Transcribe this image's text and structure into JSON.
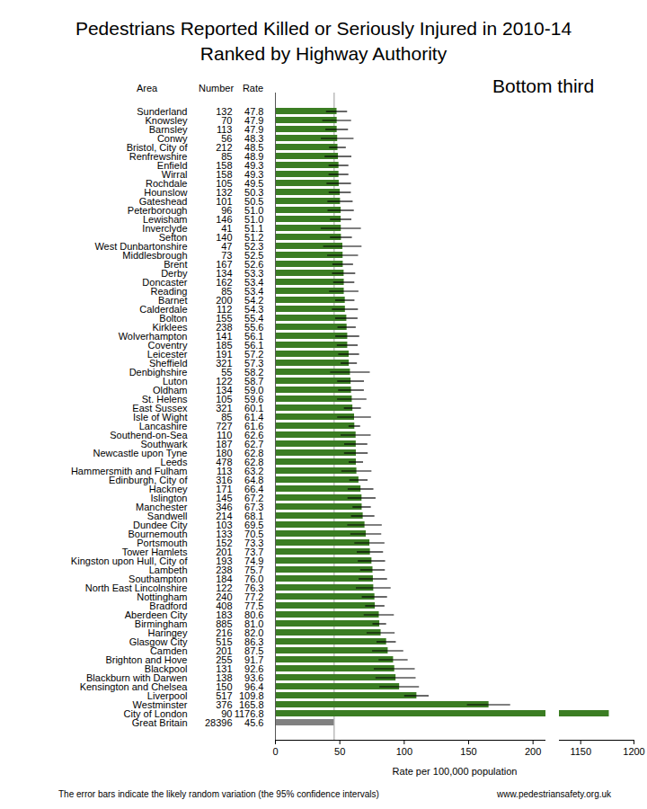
{
  "chart_data": {
    "type": "bar",
    "orientation": "horizontal",
    "title": "Pedestrians Reported Killed or Seriously Injured in 2010-14",
    "subtitle": "Ranked by Highway Authority",
    "annotation": "Bottom third",
    "caption": "The error bars indicate the likely random variation (the 95% confidence intervals)",
    "source": "www.pedestriansafety.org.uk",
    "columns": [
      "Area",
      "Number",
      "Rate"
    ],
    "x_label": "Rate per 100,000 population",
    "xlim": [
      0,
      1200
    ],
    "x_break": [
      210,
      1130
    ],
    "xticks": [
      0,
      50,
      100,
      150,
      200,
      1150,
      1200
    ],
    "grid": false,
    "reference_line": 45.6,
    "categories": [
      "Sunderland",
      "Knowsley",
      "Barnsley",
      "Conwy",
      "Bristol, City of",
      "Renfrewshire",
      "Enfield",
      "Wirral",
      "Rochdale",
      "Hounslow",
      "Gateshead",
      "Peterborough",
      "Lewisham",
      "Inverclyde",
      "Sefton",
      "West Dunbartonshire",
      "Middlesbrough",
      "Brent",
      "Derby",
      "Doncaster",
      "Reading",
      "Barnet",
      "Calderdale",
      "Bolton",
      "Kirklees",
      "Wolverhampton",
      "Coventry",
      "Leicester",
      "Sheffield",
      "Denbighshire",
      "Luton",
      "Oldham",
      "St. Helens",
      "East Sussex",
      "Isle of Wight",
      "Lancashire",
      "Southend-on-Sea",
      "Southwark",
      "Newcastle upon Tyne",
      "Leeds",
      "Hammersmith and Fulham",
      "Edinburgh, City of",
      "Hackney",
      "Islington",
      "Manchester",
      "Sandwell",
      "Dundee City",
      "Bournemouth",
      "Portsmouth",
      "Tower Hamlets",
      "Kingston upon Hull, City of",
      "Lambeth",
      "Southampton",
      "North East Lincolnshire",
      "Nottingham",
      "Bradford",
      "Aberdeen City",
      "Birmingham",
      "Haringey",
      "Glasgow City",
      "Camden",
      "Brighton and Hove",
      "Blackpool",
      "Blackburn with Darwen",
      "Kensington and Chelsea",
      "Liverpool",
      "Westminster",
      "City of London",
      "Great Britain"
    ],
    "counts": [
      132,
      70,
      113,
      56,
      212,
      85,
      158,
      158,
      105,
      132,
      101,
      96,
      146,
      41,
      140,
      47,
      73,
      167,
      134,
      162,
      85,
      200,
      112,
      155,
      238,
      141,
      185,
      191,
      321,
      55,
      122,
      134,
      105,
      321,
      85,
      727,
      110,
      187,
      180,
      478,
      113,
      316,
      171,
      145,
      346,
      214,
      103,
      133,
      152,
      201,
      193,
      238,
      184,
      122,
      240,
      408,
      183,
      885,
      216,
      515,
      201,
      255,
      131,
      138,
      150,
      517,
      376,
      90,
      28396
    ],
    "values": [
      47.8,
      47.9,
      47.9,
      48.3,
      48.5,
      48.9,
      49.3,
      49.3,
      49.5,
      50.3,
      50.5,
      51.0,
      51.0,
      51.1,
      51.2,
      52.3,
      52.5,
      52.6,
      53.3,
      53.4,
      53.4,
      54.2,
      54.3,
      55.4,
      55.6,
      56.1,
      56.1,
      57.2,
      57.3,
      58.2,
      58.7,
      59.0,
      59.6,
      60.1,
      61.4,
      61.6,
      62.6,
      62.7,
      62.8,
      62.8,
      63.2,
      64.8,
      66.4,
      67.2,
      67.3,
      68.1,
      69.5,
      70.5,
      73.3,
      73.7,
      74.9,
      75.7,
      76.0,
      76.3,
      77.2,
      77.5,
      80.6,
      81.0,
      82.0,
      86.3,
      87.5,
      91.7,
      92.6,
      93.6,
      96.4,
      109.8,
      165.8,
      1176.8,
      45.6
    ],
    "value_labels": [
      "47.8",
      "47.9",
      "47.9",
      "48.3",
      "48.5",
      "48.9",
      "49.3",
      "49.3",
      "49.5",
      "50.3",
      "50.5",
      "51.0",
      "51.0",
      "51.1",
      "51.2",
      "52.3",
      "52.5",
      "52.6",
      "53.3",
      "53.4",
      "53.4",
      "54.2",
      "54.3",
      "55.4",
      "55.6",
      "56.1",
      "56.1",
      "57.2",
      "57.3",
      "58.2",
      "58.7",
      "59.0",
      "59.6",
      "60.1",
      "61.4",
      "61.6",
      "62.6",
      "62.7",
      "62.8",
      "62.8",
      "63.2",
      "64.8",
      "66.4",
      "67.2",
      "67.3",
      "68.1",
      "69.5",
      "70.5",
      "73.3",
      "73.7",
      "74.9",
      "75.7",
      "76.0",
      "76.3",
      "77.2",
      "77.5",
      "80.6",
      "81.0",
      "82.0",
      "86.3",
      "87.5",
      "91.7",
      "92.6",
      "93.6",
      "96.4",
      "109.8",
      "165.8",
      "1176.8",
      "45.6"
    ],
    "ci_low": [
      39.6,
      36.7,
      39.1,
      35.6,
      42.0,
      38.5,
      41.6,
      41.6,
      40.0,
      41.7,
      40.7,
      40.8,
      42.7,
      35.5,
      42.7,
      37.4,
      40.5,
      44.6,
      44.3,
      45.2,
      42.0,
      46.7,
      44.2,
      46.7,
      48.5,
      46.8,
      48.0,
      49.1,
      51.0,
      42.8,
      48.3,
      49.0,
      48.2,
      53.5,
      48.3,
      57.1,
      50.9,
      53.7,
      53.6,
      57.2,
      51.5,
      57.7,
      56.4,
      56.3,
      60.2,
      59.0,
      56.1,
      58.5,
      61.6,
      63.5,
      64.3,
      66.1,
      65.0,
      62.8,
      67.4,
      70.0,
      68.9,
      75.7,
      71.1,
      78.8,
      75.4,
      80.4,
      76.7,
      78.0,
      81.0,
      100.3,
      149.0,
      null,
      null
    ],
    "ci_high": [
      56.0,
      59.1,
      56.7,
      61.0,
      55.0,
      59.3,
      57.0,
      57.0,
      59.0,
      58.9,
      60.3,
      61.2,
      59.3,
      66.7,
      59.7,
      67.2,
      64.5,
      60.6,
      62.3,
      61.6,
      64.8,
      61.7,
      64.4,
      64.1,
      62.7,
      65.4,
      64.2,
      65.3,
      63.6,
      73.6,
      69.1,
      69.0,
      71.0,
      66.7,
      74.5,
      66.1,
      74.3,
      71.7,
      72.0,
      68.4,
      74.9,
      71.9,
      76.4,
      78.1,
      74.4,
      77.2,
      82.9,
      82.5,
      85.0,
      83.9,
      85.5,
      85.3,
      87.0,
      89.8,
      87.0,
      85.0,
      92.3,
      86.3,
      92.9,
      93.8,
      99.6,
      103.0,
      108.5,
      109.2,
      111.8,
      119.3,
      182.6,
      null,
      null
    ],
    "colors": [
      "#3b7d23",
      "#3b7d23",
      "#3b7d23",
      "#3b7d23",
      "#3b7d23",
      "#3b7d23",
      "#3b7d23",
      "#3b7d23",
      "#3b7d23",
      "#3b7d23",
      "#3b7d23",
      "#3b7d23",
      "#3b7d23",
      "#3b7d23",
      "#3b7d23",
      "#3b7d23",
      "#3b7d23",
      "#3b7d23",
      "#3b7d23",
      "#3b7d23",
      "#3b7d23",
      "#3b7d23",
      "#3b7d23",
      "#3b7d23",
      "#3b7d23",
      "#3b7d23",
      "#3b7d23",
      "#3b7d23",
      "#3b7d23",
      "#3b7d23",
      "#3b7d23",
      "#3b7d23",
      "#3b7d23",
      "#3b7d23",
      "#3b7d23",
      "#3b7d23",
      "#3b7d23",
      "#3b7d23",
      "#3b7d23",
      "#3b7d23",
      "#3b7d23",
      "#3b7d23",
      "#3b7d23",
      "#3b7d23",
      "#3b7d23",
      "#3b7d23",
      "#3b7d23",
      "#3b7d23",
      "#3b7d23",
      "#3b7d23",
      "#3b7d23",
      "#3b7d23",
      "#3b7d23",
      "#3b7d23",
      "#3b7d23",
      "#3b7d23",
      "#3b7d23",
      "#3b7d23",
      "#3b7d23",
      "#3b7d23",
      "#3b7d23",
      "#3b7d23",
      "#3b7d23",
      "#3b7d23",
      "#3b7d23",
      "#3b7d23",
      "#3b7d23",
      "#3b7d23",
      "#808080"
    ]
  }
}
